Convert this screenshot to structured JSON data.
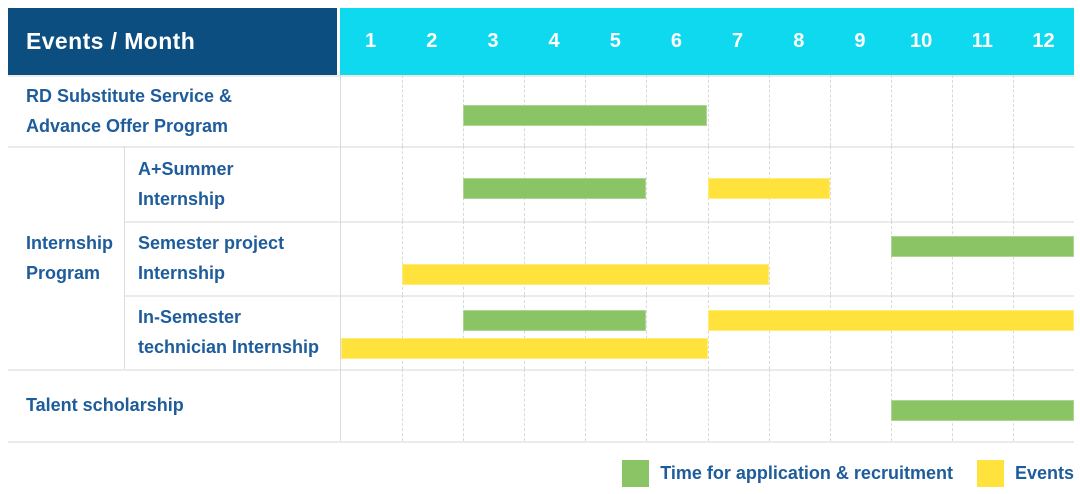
{
  "header": {
    "corner_label": "Events / Month",
    "months": [
      "1",
      "2",
      "3",
      "4",
      "5",
      "6",
      "7",
      "8",
      "9",
      "10",
      "11",
      "12"
    ]
  },
  "colors": {
    "navy": "#0b4e7f",
    "cyan": "#0fd9ee",
    "green": "#8bc464",
    "yellow": "#ffe33c",
    "text_blue": "#1e5c9b"
  },
  "legend": {
    "items": [
      {
        "color": "green",
        "label": "Time for application & recruitment"
      },
      {
        "color": "yellow",
        "label": "Events"
      }
    ]
  },
  "chart_data": {
    "type": "bar",
    "subtype": "gantt-schedule",
    "x_axis": {
      "unit": "month",
      "range": [
        1,
        12
      ],
      "ticks": [
        "1",
        "2",
        "3",
        "4",
        "5",
        "6",
        "7",
        "8",
        "9",
        "10",
        "11",
        "12"
      ]
    },
    "series": [
      {
        "name": "Time for application & recruitment",
        "color": "#8bc464"
      },
      {
        "name": "Events",
        "color": "#ffe33c"
      }
    ],
    "legend_position": "bottom-right",
    "grid": "dashed-vertical-month-lines",
    "groups": [
      {
        "name": "Internship Program",
        "label_lines": [
          "Internship",
          "Program"
        ]
      }
    ],
    "rows": [
      {
        "label": "RD Substitute Service & Advance Offer Program",
        "label_lines": [
          "RD Substitute Service &",
          "Advance Offer Program"
        ],
        "group": null,
        "bars": [
          {
            "series": "Time for application & recruitment",
            "color": "green",
            "start_month": 3,
            "end_month": 6,
            "lane": "center"
          }
        ]
      },
      {
        "label": "A+Summer Internship",
        "label_lines": [
          "A+Summer",
          "Internship"
        ],
        "group": "Internship Program",
        "bars": [
          {
            "series": "Time for application & recruitment",
            "color": "green",
            "start_month": 3,
            "end_month": 5,
            "lane": "center"
          },
          {
            "series": "Events",
            "color": "yellow",
            "start_month": 7,
            "end_month": 8,
            "lane": "center"
          }
        ]
      },
      {
        "label": "Semester project Internship",
        "label_lines": [
          "Semester project",
          "Internship"
        ],
        "group": "Internship Program",
        "bars": [
          {
            "series": "Time for application & recruitment",
            "color": "green",
            "start_month": 10,
            "end_month": 12,
            "lane": "top"
          },
          {
            "series": "Events",
            "color": "yellow",
            "start_month": 2,
            "end_month": 7,
            "lane": "bottom"
          }
        ]
      },
      {
        "label": "In-Semester technician Internship",
        "label_lines": [
          "In-Semester",
          "technician Internship"
        ],
        "group": "Internship Program",
        "bars": [
          {
            "series": "Time for application & recruitment",
            "color": "green",
            "start_month": 3,
            "end_month": 5,
            "lane": "top"
          },
          {
            "series": "Events",
            "color": "yellow",
            "start_month": 7,
            "end_month": 12,
            "lane": "top"
          },
          {
            "series": "Events",
            "color": "yellow",
            "start_month": 1,
            "end_month": 6,
            "lane": "bottom"
          }
        ]
      },
      {
        "label": "Talent scholarship",
        "label_lines": [
          "Talent scholarship"
        ],
        "group": null,
        "bars": [
          {
            "series": "Time for application & recruitment",
            "color": "green",
            "start_month": 10,
            "end_month": 12,
            "lane": "center"
          }
        ]
      }
    ]
  }
}
